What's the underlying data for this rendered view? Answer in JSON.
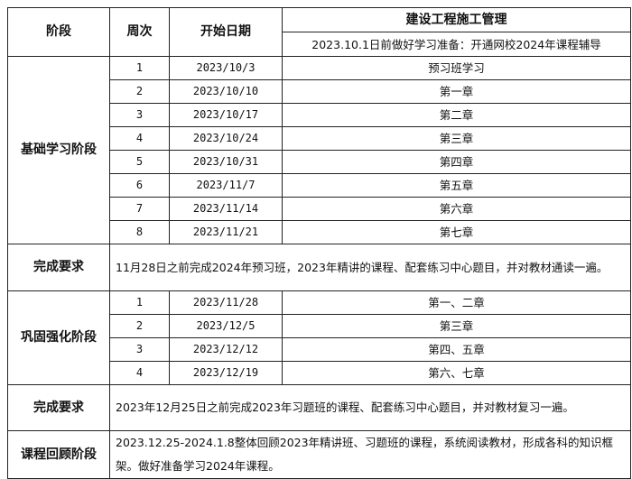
{
  "header": {
    "stage": "阶段",
    "week": "周次",
    "start_date": "开始日期",
    "subject": "建设工程施工管理",
    "prep_note": "2023.10.1日前做好学习准备：开通网校2024年课程辅导"
  },
  "phase1": {
    "label": "基础学习阶段",
    "rows": [
      {
        "week": "1",
        "date": "2023/10/3",
        "content": "预习班学习"
      },
      {
        "week": "2",
        "date": "2023/10/10",
        "content": "第一章"
      },
      {
        "week": "3",
        "date": "2023/10/17",
        "content": "第二章"
      },
      {
        "week": "4",
        "date": "2023/10/24",
        "content": "第三章"
      },
      {
        "week": "5",
        "date": "2023/10/31",
        "content": "第四章"
      },
      {
        "week": "6",
        "date": "2023/11/7",
        "content": "第五章"
      },
      {
        "week": "7",
        "date": "2023/11/14",
        "content": "第六章"
      },
      {
        "week": "8",
        "date": "2023/11/21",
        "content": "第七章"
      }
    ]
  },
  "req1": {
    "label": "完成要求",
    "text": "11月28日之前完成2024年预习班，2023年精讲的课程、配套练习中心题目，并对教材通读一遍。"
  },
  "phase2": {
    "label": "巩固强化阶段",
    "rows": [
      {
        "week": "1",
        "date": "2023/11/28",
        "content": "第一、二章"
      },
      {
        "week": "2",
        "date": "2023/12/5",
        "content": "第三章"
      },
      {
        "week": "3",
        "date": "2023/12/12",
        "content": "第四、五章"
      },
      {
        "week": "4",
        "date": "2023/12/19",
        "content": "第六、七章"
      }
    ]
  },
  "req2": {
    "label": "完成要求",
    "text": "2023年12月25日之前完成2023年习题班的课程、配套练习中心题目，并对教材复习一遍。"
  },
  "review": {
    "label": "课程回顾阶段",
    "text": "2023.12.25-2024.1.8整体回顾2023年精讲班、习题班的课程，系统阅读教材，形成各科的知识框架。做好准备学习2024年课程。"
  }
}
